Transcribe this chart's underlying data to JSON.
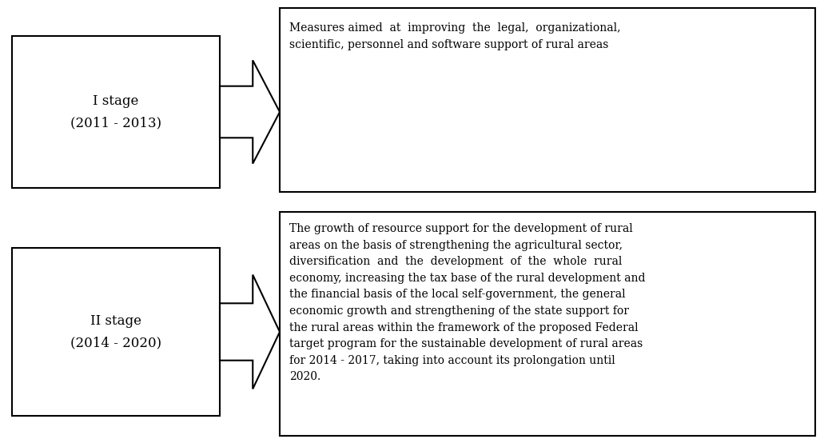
{
  "background_color": "#ffffff",
  "box1_label": "I stage\n(2011 - 2013)",
  "box2_label": "II stage\n(2014 - 2020)",
  "text1": "Measures aimed  at  improving  the  legal,  organizational,\nscientific, personnel and software support of rural areas",
  "text2": "The growth of resource support for the development of rural\nareas on the basis of strengthening the agricultural sector,\ndiversification  and  the  development  of  the  whole  rural\neconomy, increasing the tax base of the rural development and\nthe financial basis of the local self-government, the general\neconomic growth and strengthening of the state support for\nthe rural areas within the framework of the proposed Federal\ntarget program for the sustainable development of rural areas\nfor 2014 - 2017, taking into account its prolongation until\n2020.",
  "box_edge_color": "#000000",
  "box_fill_color": "#ffffff",
  "text_color": "#000000",
  "font_size": 10.0,
  "label_font_size": 12.0,
  "lw": 1.5
}
